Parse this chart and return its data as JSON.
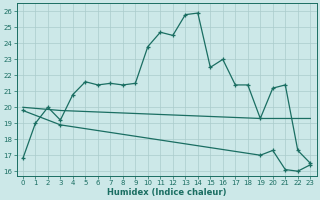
{
  "xlabel": "Humidex (Indice chaleur)",
  "xlim": [
    -0.5,
    23.5
  ],
  "ylim": [
    15.7,
    26.5
  ],
  "yticks": [
    16,
    17,
    18,
    19,
    20,
    21,
    22,
    23,
    24,
    25,
    26
  ],
  "xticks": [
    0,
    1,
    2,
    3,
    4,
    5,
    6,
    7,
    8,
    9,
    10,
    11,
    12,
    13,
    14,
    15,
    16,
    17,
    18,
    19,
    20,
    21,
    22,
    23
  ],
  "bg_color": "#cce8e8",
  "grid_color": "#aacccc",
  "line_color": "#1a6e62",
  "curve1_x": [
    0,
    1,
    2,
    3,
    4,
    5,
    6,
    7,
    8,
    9,
    10,
    11,
    12,
    13,
    14,
    15,
    16,
    17,
    18,
    19,
    20,
    21,
    22,
    23
  ],
  "curve1_y": [
    16.8,
    19.0,
    20.0,
    19.2,
    20.8,
    21.6,
    21.4,
    21.5,
    21.4,
    21.5,
    23.8,
    24.7,
    24.5,
    25.8,
    25.9,
    22.5,
    23.0,
    21.4,
    21.4,
    19.3,
    21.2,
    21.4,
    17.3,
    16.5
  ],
  "curve2_x": [
    0,
    3,
    19,
    23
  ],
  "curve2_y": [
    20.0,
    19.8,
    19.3,
    19.3
  ],
  "curve3_x": [
    0,
    3,
    19,
    20,
    21,
    22,
    23
  ],
  "curve3_y": [
    19.8,
    18.9,
    17.0,
    17.3,
    16.1,
    16.0,
    16.4
  ]
}
